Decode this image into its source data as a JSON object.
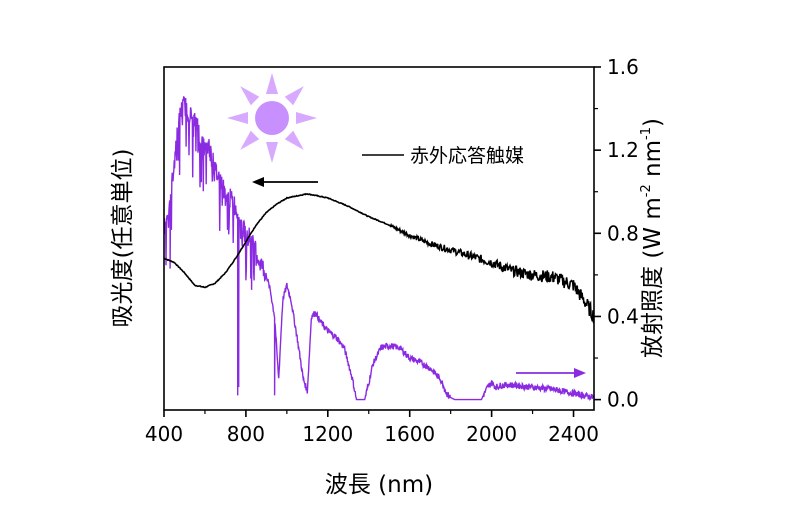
{
  "chart_data": {
    "type": "line",
    "xlabel": "波長 (nm)",
    "ylabel_left": "吸光度(任意単位)",
    "ylabel_right": "放射照度 (W m",
    "ylabel_right_parts": [
      "放射照度 (W m",
      "-2",
      " nm",
      "-1",
      ")"
    ],
    "xlim": [
      400,
      2500
    ],
    "ylim_right": [
      -0.05,
      1.6
    ],
    "x_ticks": [
      "400",
      "800",
      "1200",
      "1600",
      "2000",
      "2400"
    ],
    "y_ticks_right": [
      "0.0",
      "0.4",
      "0.8",
      "1.2",
      "1.6"
    ],
    "legend": {
      "label": "赤外応答触媒",
      "position": "upper-right"
    },
    "series": [
      {
        "name": "赤外応答触媒",
        "axis": "left",
        "color": "#000000",
        "x": [
          400,
          450,
          500,
          550,
          600,
          650,
          700,
          750,
          800,
          850,
          900,
          950,
          1000,
          1050,
          1100,
          1150,
          1200,
          1300,
          1400,
          1500,
          1600,
          1700,
          1800,
          1900,
          2000,
          2100,
          2200,
          2300,
          2400,
          2450,
          2500
        ],
        "values": [
          0.68,
          0.66,
          0.61,
          0.55,
          0.54,
          0.56,
          0.61,
          0.68,
          0.76,
          0.84,
          0.9,
          0.94,
          0.97,
          0.98,
          0.99,
          0.98,
          0.97,
          0.93,
          0.88,
          0.84,
          0.79,
          0.75,
          0.72,
          0.69,
          0.66,
          0.62,
          0.6,
          0.59,
          0.55,
          0.48,
          0.4
        ]
      },
      {
        "name": "",
        "axis": "right",
        "color": "#8a2be2",
        "x": [
          400,
          420,
          440,
          460,
          480,
          500,
          520,
          540,
          560,
          580,
          600,
          620,
          650,
          680,
          700,
          720,
          740,
          760,
          780,
          800,
          820,
          860,
          900,
          920,
          940,
          960,
          980,
          1000,
          1020,
          1050,
          1080,
          1100,
          1120,
          1140,
          1160,
          1200,
          1240,
          1280,
          1320,
          1340,
          1360,
          1380,
          1400,
          1420,
          1440,
          1460,
          1500,
          1550,
          1600,
          1650,
          1700,
          1750,
          1780,
          1800,
          1820,
          1900,
          1950,
          1980,
          2000,
          2020,
          2050,
          2100,
          2200,
          2300,
          2400,
          2450,
          2500
        ],
        "values": [
          0.82,
          0.9,
          1.05,
          1.25,
          1.38,
          1.42,
          1.38,
          1.35,
          1.33,
          1.25,
          1.2,
          1.22,
          1.1,
          1.05,
          0.98,
          0.97,
          0.95,
          0.9,
          0.82,
          0.8,
          0.78,
          0.68,
          0.6,
          0.52,
          0.4,
          0.1,
          0.48,
          0.55,
          0.48,
          0.3,
          0.1,
          0.04,
          0.4,
          0.42,
          0.38,
          0.33,
          0.3,
          0.25,
          0.1,
          0.0,
          0.0,
          0.0,
          0.08,
          0.17,
          0.21,
          0.25,
          0.26,
          0.25,
          0.2,
          0.18,
          0.15,
          0.1,
          0.03,
          0.01,
          0.0,
          0.0,
          0.0,
          0.06,
          0.08,
          0.06,
          0.07,
          0.07,
          0.06,
          0.05,
          0.03,
          0.02,
          0.01
        ]
      }
    ],
    "colors": {
      "catalyst": "#000000",
      "irradiance": "#8a2be2",
      "sun": "#c890ff"
    },
    "icons": [
      "sun-icon",
      "arrow-left-icon",
      "arrow-right-icon"
    ]
  }
}
